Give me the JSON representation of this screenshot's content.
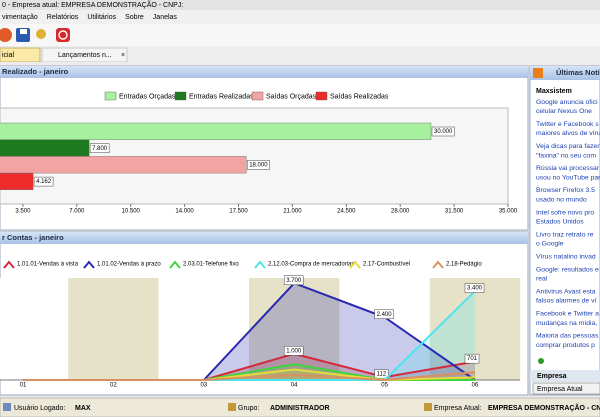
{
  "window": {
    "title": "0 - Empresa atual: EMPRESA DEMONSTRAÇÃO - CNPJ:"
  },
  "menu": [
    "vimentação",
    "Relatórios",
    "Utilitários",
    "Sobre",
    "Janelas"
  ],
  "tabs": [
    "icial",
    "Lançamentos n..."
  ],
  "bar_panel": {
    "title": "Realizado - janeiro",
    "chart": {
      "type": "bar",
      "orientation": "horizontal",
      "series": [
        {
          "name": "Entradas Orçadas",
          "color": "#a6f0a0",
          "values": [
            30000
          ],
          "value_labels": [
            "30.000"
          ]
        },
        {
          "name": "Entradas Realizadas",
          "color": "#1e7a1e",
          "values": [
            7800
          ],
          "value_labels": [
            "7.800"
          ]
        },
        {
          "name": "Saídas Orçadas",
          "color": "#f4a3a3",
          "values": [
            18000
          ],
          "value_labels": [
            "18.000"
          ]
        },
        {
          "name": "Saídas Realizadas",
          "color": "#ee2a2a",
          "values": [
            4162
          ],
          "value_labels": [
            "4.162"
          ]
        }
      ],
      "xlim": [
        0,
        35000
      ],
      "xticks": [
        {
          "value": 3500,
          "label": "3.500"
        },
        {
          "value": 7000,
          "label": "7.000"
        },
        {
          "value": 10500,
          "label": "10.500"
        },
        {
          "value": 14000,
          "label": "14.000"
        },
        {
          "value": 17500,
          "label": "17.500"
        },
        {
          "value": 21000,
          "label": "21.000"
        },
        {
          "value": 24500,
          "label": "24.500"
        },
        {
          "value": 28000,
          "label": "28.000"
        },
        {
          "value": 31500,
          "label": "31.500"
        },
        {
          "value": 35000,
          "label": "35.000"
        }
      ]
    }
  },
  "line_panel": {
    "title": "r Contas - janeiro",
    "chart": {
      "type": "area",
      "categories": [
        "01",
        "02",
        "03",
        "04",
        "05",
        "06"
      ],
      "series": [
        {
          "name": "1.01.01-Vendas à vista",
          "color": "#d42a3a",
          "values": [
            0,
            0,
            0,
            1000,
            112,
            701
          ],
          "value_labels": [
            null,
            null,
            null,
            "1.000",
            "112",
            "701"
          ]
        },
        {
          "name": "1.01.02-Vendas à prazo",
          "color": "#2a2ab0",
          "values": [
            0,
            0,
            0,
            3700,
            2400,
            0
          ],
          "value_labels": [
            null,
            null,
            null,
            "3.700",
            "2.400",
            null
          ]
        },
        {
          "name": "2.03.01-Telefone fixo",
          "color": "#3ed43e",
          "values": [
            0,
            0,
            0,
            600,
            0,
            0
          ]
        },
        {
          "name": "2.12.03-Compra de mercadorias",
          "color": "#4ee4ee",
          "values": [
            0,
            0,
            0,
            0,
            0,
            3400
          ],
          "value_labels": [
            null,
            null,
            null,
            null,
            null,
            "3.400"
          ]
        },
        {
          "name": "2.17-Combustível",
          "color": "#e8d83a",
          "values": [
            0,
            0,
            0,
            400,
            0,
            100
          ]
        },
        {
          "name": "2.18-Pedágio",
          "color": "#d89060",
          "values": [
            0,
            0,
            0,
            200,
            0,
            300
          ]
        }
      ],
      "ylim": [
        0,
        3900
      ]
    }
  },
  "news": {
    "title": "Últimas Notí",
    "source": "Maxsistem",
    "items": [
      [
        "Google anuncia ofici",
        "celular Nexus One"
      ],
      [
        "Twitter e Facebook s",
        "maiores alvos de víru"
      ],
      [
        "Veja dicas para fazer",
        "\"faxina\" no seu com"
      ],
      [
        "Rússia vai processar",
        "usou no YouTube para"
      ],
      [
        "Browser Firefox 3.5",
        "usado no mundo"
      ],
      [
        "Intel sofre novo pro",
        "Estados Unidos"
      ],
      [
        "Livro traz retrato re",
        "o Google"
      ],
      [
        "Vírus natalino invad"
      ],
      [
        "Google: resultados e",
        "real"
      ],
      [
        "Antivírus Avast esta",
        "falsos alarmes de ví"
      ],
      [
        "Facebook e Twitter a",
        "mudanças na mídia,"
      ],
      [
        "Maioria das pessoas",
        "comprar produtos p"
      ]
    ],
    "company_label": "Empresa",
    "company_button": "Empresa Atual"
  },
  "status": {
    "user_label": "Usuário Logado:",
    "user": "MAX",
    "group_label": "Grupo:",
    "group": "ADMINISTRADOR",
    "company_label": "Empresa Atual:",
    "company": "EMPRESA DEMONSTRAÇÃO - CNPJ:"
  }
}
